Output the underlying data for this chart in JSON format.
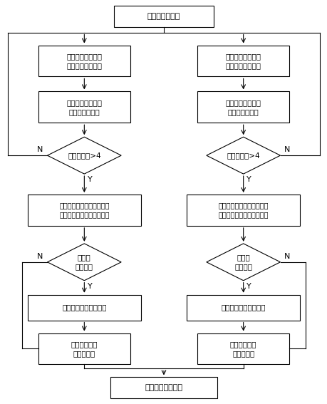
{
  "bg_color": "#ffffff",
  "nodes": {
    "start": {
      "text": "等待观测量中断"
    },
    "left_box1": {
      "text": "剔除重复卫星和故\n障卫星的观测数据"
    },
    "right_box1": {
      "text": "剔除重复卫星和故\n障卫星的观测数据"
    },
    "left_box2": {
      "text": "主处理单元计算观\n测量和本地时间"
    },
    "right_box2": {
      "text": "副处理单元计算观\n测量和本地时间"
    },
    "left_d1": {
      "text": "可用卫星数>4"
    },
    "right_d1": {
      "text": "可用卫星数>4"
    },
    "left_box3": {
      "text": "读取对应卫星星历、钟差等\n参数，解算卫星位置和速度"
    },
    "right_box3": {
      "text": "读取对应卫星星历、钟差等\n参数，解算卫星位置和速度"
    },
    "left_d2": {
      "text": "位置有\n效性判断"
    },
    "right_d2": {
      "text": "位置有\n效性判断"
    },
    "left_box4": {
      "text": "解算码单点定位、测速"
    },
    "right_box4": {
      "text": "解算码单点定位、测速"
    },
    "left_box5": {
      "text": "生成主处理单\n元差分数据"
    },
    "right_box5": {
      "text": "生成主处理单\n元差分数据"
    },
    "end": {
      "text": "差分数据处理模块"
    }
  },
  "label_N": "N",
  "label_Y": "Y"
}
